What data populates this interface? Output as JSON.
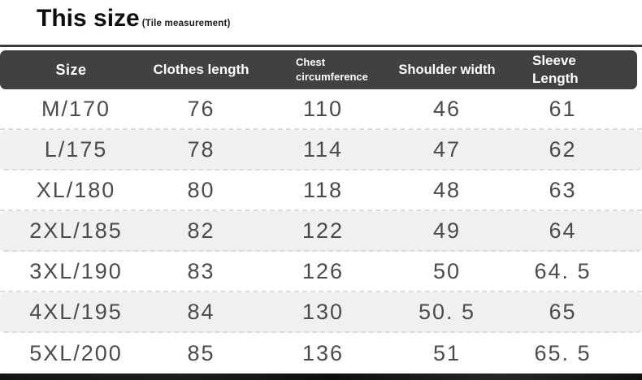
{
  "page": {
    "title": "This size",
    "title_note": "(Tile measurement)"
  },
  "table": {
    "header": {
      "size": "Size",
      "clothes_length": "Clothes length",
      "chest_line1": "Chest",
      "chest_line2": "circumference",
      "shoulder": "Shoulder width",
      "sleeve_line1": "Sleeve",
      "sleeve_line2": "Length"
    },
    "rows": [
      {
        "size": "M/170",
        "clothes_length": "76",
        "chest": "110",
        "shoulder": "46",
        "sleeve": "61"
      },
      {
        "size": "L/175",
        "clothes_length": "78",
        "chest": "114",
        "shoulder": "47",
        "sleeve": "62"
      },
      {
        "size": "XL/180",
        "clothes_length": "80",
        "chest": "118",
        "shoulder": "48",
        "sleeve": "63"
      },
      {
        "size": "2XL/185",
        "clothes_length": "82",
        "chest": "122",
        "shoulder": "49",
        "sleeve": "64"
      },
      {
        "size": "3XL/190",
        "clothes_length": "83",
        "chest": "126",
        "shoulder": "50",
        "sleeve": "64. 5"
      },
      {
        "size": "4XL/195",
        "clothes_length": "84",
        "chest": "130",
        "shoulder": "50. 5",
        "sleeve": "65"
      },
      {
        "size": "5XL/200",
        "clothes_length": "85",
        "chest": "136",
        "shoulder": "51",
        "sleeve": "65. 5"
      }
    ]
  },
  "colors": {
    "header_bg": "#414141",
    "header_text": "#ffffff",
    "row_alt_bg": "#f0f0f0",
    "data_text": "#4b4b4b",
    "divider_line": "#3b3b3b",
    "row_dash": "#dcdcdc",
    "bottom_bar": "#161616"
  }
}
